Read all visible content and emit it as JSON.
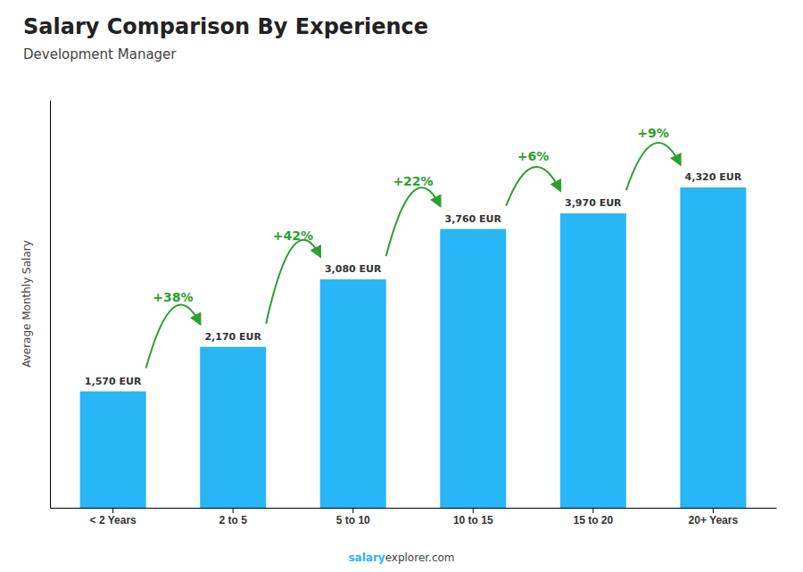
{
  "chart_data": {
    "type": "bar",
    "title": "Salary Comparison By Experience",
    "subtitle": "Development Manager",
    "ylabel": "Average Monthly Salary",
    "categories": [
      "< 2 Years",
      "2 to 5",
      "5 to 10",
      "10 to 15",
      "15 to 20",
      "20+ Years"
    ],
    "values": [
      1570,
      2170,
      3080,
      3760,
      3970,
      4320
    ],
    "value_labels": [
      "1,570 EUR",
      "2,170 EUR",
      "3,080 EUR",
      "3,760 EUR",
      "3,970 EUR",
      "4,320 EUR"
    ],
    "data_labels": true,
    "color": "#29b6f6",
    "ylim": [
      0,
      5500
    ],
    "tick_labels": "x",
    "grid": false,
    "annotations": [
      "+38%",
      "+42%",
      "+22%",
      "+6%",
      "+9%"
    ],
    "footer": [
      "salary",
      "explorer.com"
    ]
  }
}
